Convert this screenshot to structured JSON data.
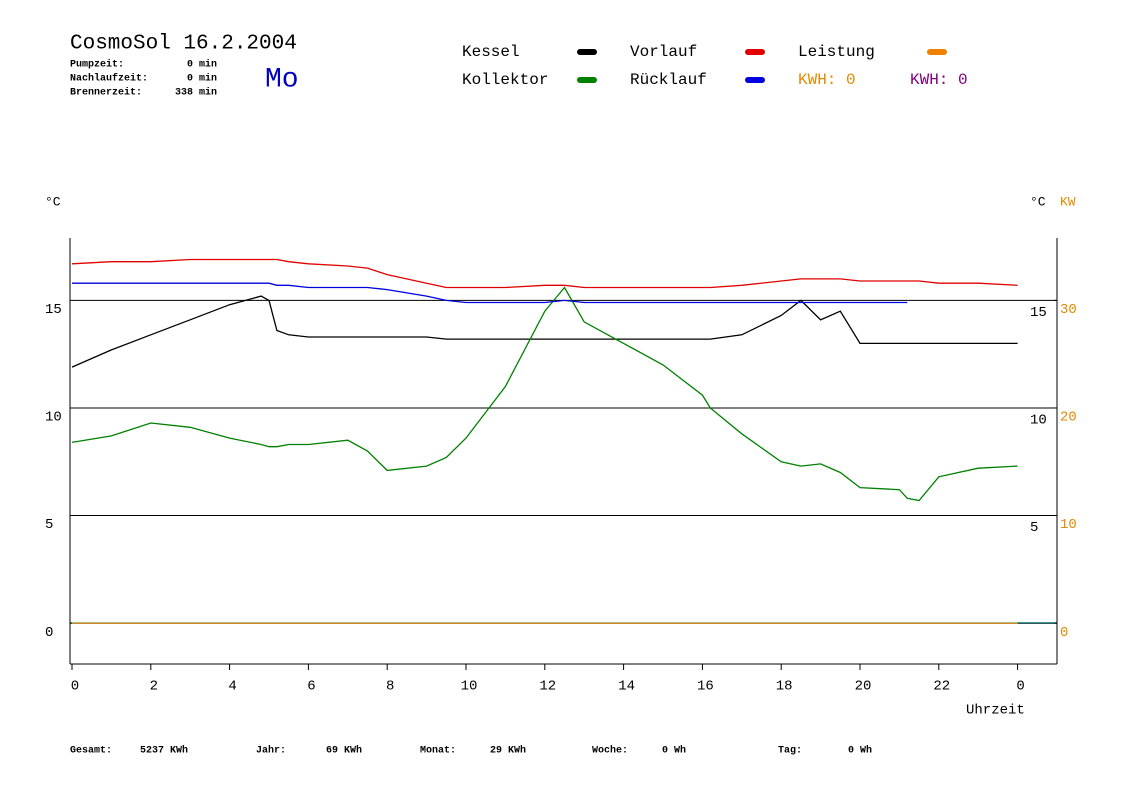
{
  "header": {
    "title": "CosmoSol 16.2.2004",
    "day": "Mo",
    "stats": [
      {
        "label": "Pumpzeit:",
        "value": "0 min"
      },
      {
        "label": "Nachlaufzeit:",
        "value": "0 min"
      },
      {
        "label": "Brennerzeit:",
        "value": "338 min"
      }
    ]
  },
  "chart_data": {
    "type": "line",
    "x": [
      0,
      1,
      2,
      3,
      4,
      4.8,
      5,
      5.2,
      5.5,
      6,
      7,
      7.5,
      8,
      9,
      9.5,
      10,
      11,
      12,
      12.5,
      13,
      14,
      15,
      16,
      16.2,
      17,
      18,
      18.5,
      19,
      19.5,
      20,
      21,
      21.2,
      21.5,
      22,
      23,
      24
    ],
    "series": [
      {
        "name": "Kessel",
        "color": "#000000",
        "values": [
          11.9,
          12.7,
          13.4,
          14.1,
          14.8,
          15.2,
          15.0,
          13.6,
          13.4,
          13.3,
          13.3,
          13.3,
          13.3,
          13.3,
          13.2,
          13.2,
          13.2,
          13.2,
          13.2,
          13.2,
          13.2,
          13.2,
          13.2,
          13.2,
          13.4,
          14.3,
          15.0,
          14.1,
          14.5,
          13.0,
          13.0,
          13.0,
          13.0,
          13.0,
          13.0,
          13.0
        ]
      },
      {
        "name": "Kollektor",
        "color": "#008000",
        "values": [
          8.4,
          8.7,
          9.3,
          9.1,
          8.6,
          8.3,
          8.2,
          8.2,
          8.3,
          8.3,
          8.5,
          8.0,
          7.1,
          7.3,
          7.7,
          8.6,
          11.0,
          14.5,
          15.6,
          14.0,
          13.0,
          12.0,
          10.6,
          10.0,
          8.8,
          7.5,
          7.3,
          7.4,
          7.0,
          6.3,
          6.2,
          5.8,
          5.7,
          6.8,
          7.2,
          7.3
        ]
      },
      {
        "name": "Vorlauf",
        "color": "#e00000",
        "values": [
          16.7,
          16.8,
          16.8,
          16.9,
          16.9,
          16.9,
          16.9,
          16.9,
          16.8,
          16.7,
          16.6,
          16.5,
          16.2,
          15.8,
          15.6,
          15.6,
          15.6,
          15.7,
          15.7,
          15.6,
          15.6,
          15.6,
          15.6,
          15.6,
          15.7,
          15.9,
          16.0,
          16.0,
          16.0,
          15.9,
          15.9,
          15.9,
          15.9,
          15.8,
          15.8,
          15.7
        ]
      },
      {
        "name": "Rücklauf",
        "color": "#0000e0",
        "values": [
          15.8,
          15.8,
          15.8,
          15.8,
          15.8,
          15.8,
          15.8,
          15.7,
          15.7,
          15.6,
          15.6,
          15.6,
          15.5,
          15.2,
          15.0,
          14.9,
          14.9,
          14.9,
          15.0,
          14.9,
          14.9,
          14.9,
          14.9,
          14.9,
          14.9,
          14.9,
          14.9,
          14.9,
          14.9,
          14.9,
          14.9,
          14.9,
          null,
          null,
          null,
          null
        ]
      },
      {
        "name": "Leistung",
        "color": "#f08000",
        "axis": "y2",
        "values": [
          0,
          0,
          0,
          0,
          0,
          0,
          0,
          0,
          0,
          0,
          0,
          0,
          0,
          0,
          0,
          0,
          0,
          0,
          0,
          0,
          0,
          0,
          0,
          0,
          0,
          0,
          0,
          0,
          0,
          0,
          0,
          0,
          0,
          0,
          0,
          0
        ]
      }
    ],
    "energy_labels": [
      {
        "text": "KWH: 0",
        "color": "#e08a00"
      },
      {
        "text": "KWH: 0",
        "color": "#800080"
      }
    ],
    "x_label": "Uhrzeit",
    "y_label": "°C",
    "y2_label": "KW",
    "xlim": [
      0,
      25
    ],
    "xticks": [
      0,
      2,
      4,
      6,
      8,
      10,
      12,
      14,
      16,
      18,
      20,
      22,
      {
        "value": 24,
        "label": "0"
      }
    ],
    "ylim": [
      -1.9,
      17.9
    ],
    "yticks": [
      0,
      5,
      10,
      15
    ],
    "y2lim": [
      -3.8,
      35.8
    ],
    "y2ticks": [
      0,
      10,
      20,
      30
    ],
    "y2color": "#e08a00",
    "grid": true
  },
  "footer": [
    {
      "label": "Gesamt:",
      "value": "5237 KWh"
    },
    {
      "label": "Jahr:",
      "value": "69 KWh"
    },
    {
      "label": "Monat:",
      "value": "29 KWh"
    },
    {
      "label": "Woche:",
      "value": "0 Wh"
    },
    {
      "label": "Tag:",
      "value": "0 Wh"
    }
  ]
}
